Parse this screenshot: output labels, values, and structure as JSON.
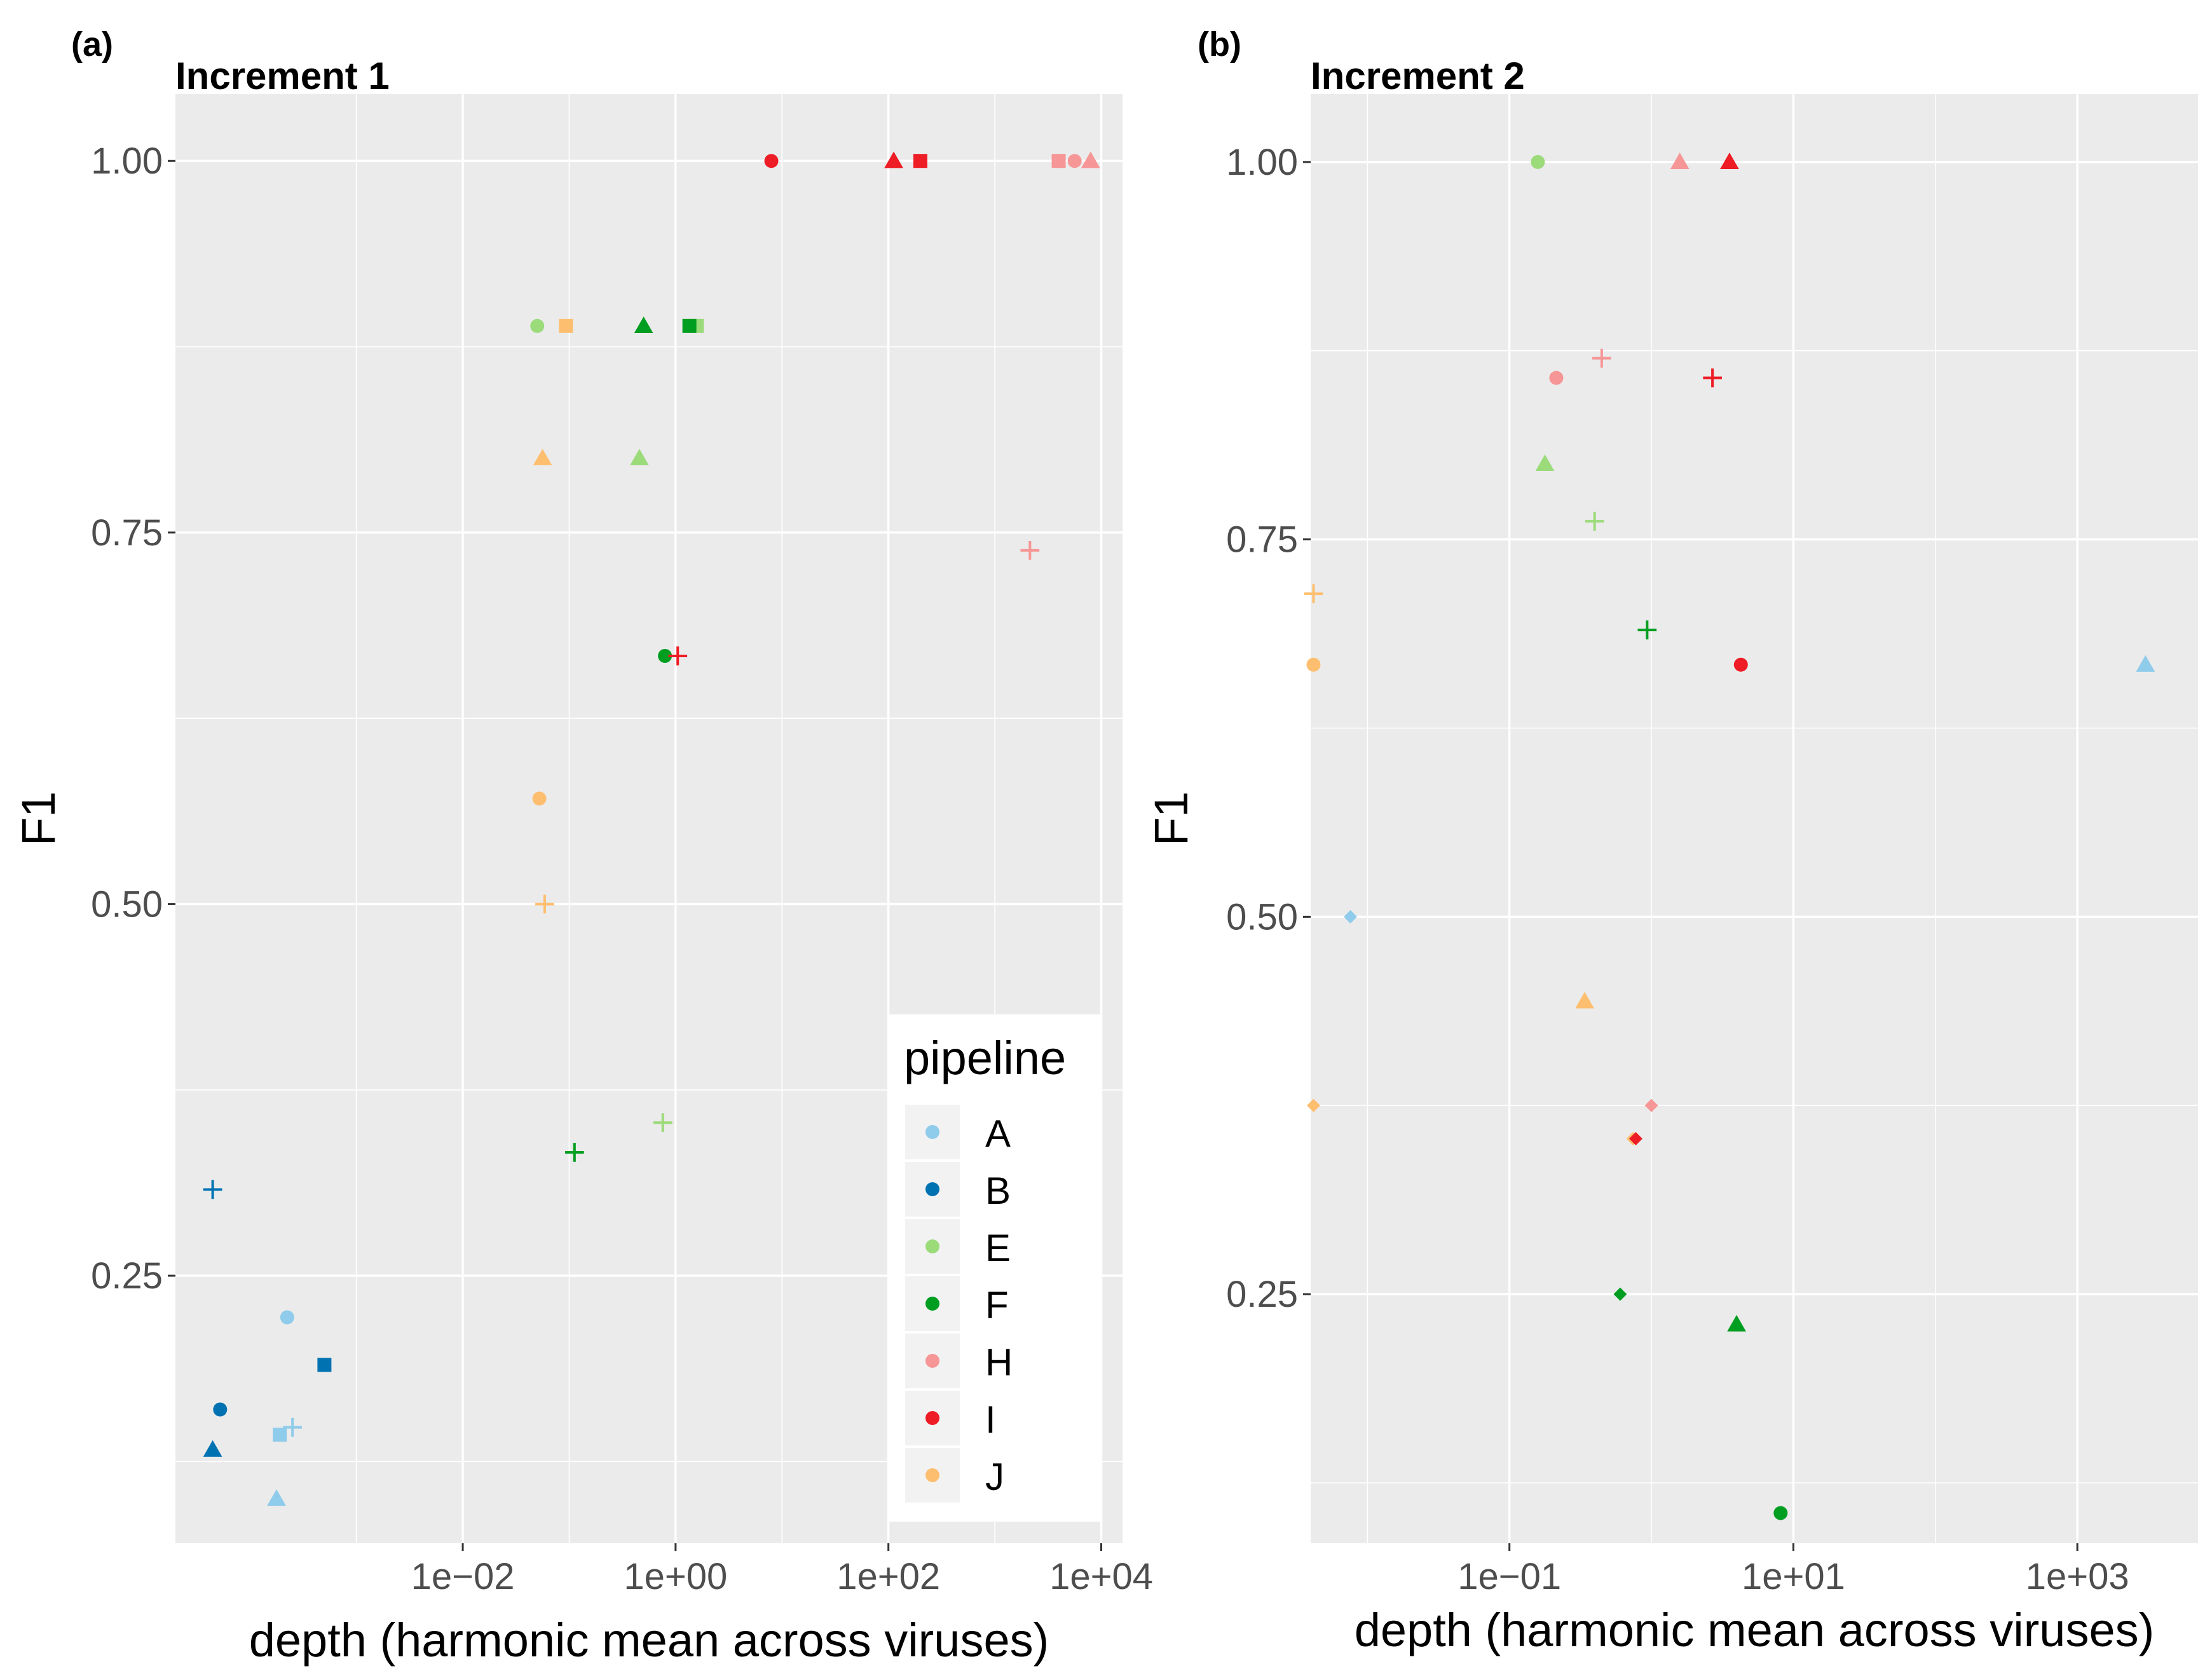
{
  "colors": {
    "panel_bg": "#EBEBEB",
    "grid": "#FFFFFF",
    "axis_text": "#4D4D4D",
    "title_text": "#000000",
    "legend_key_bg": "#F2F2F2"
  },
  "legend": {
    "title": "pipeline",
    "position": "inside bottom-right of panel (a)",
    "entries": [
      {
        "label": "A",
        "color": "#8FCBEA"
      },
      {
        "label": "B",
        "color": "#0072B2"
      },
      {
        "label": "E",
        "color": "#9BDB7A"
      },
      {
        "label": "F",
        "color": "#009E20"
      },
      {
        "label": "H",
        "color": "#F79696"
      },
      {
        "label": "I",
        "color": "#EE1C25"
      },
      {
        "label": "J",
        "color": "#FDBF6F"
      }
    ]
  },
  "chart_data": [
    {
      "type": "scatter",
      "tag": "(a)",
      "title": "Increment 1",
      "xlabel": "depth (harmonic mean across viruses)",
      "ylabel": "F1",
      "x_scale": "log10",
      "xlim_log10": [
        -4.7,
        4.2
      ],
      "ylim": [
        0.07,
        1.045
      ],
      "x_ticks": [
        {
          "log10": -2,
          "label": "1e−02"
        },
        {
          "log10": 0,
          "label": "1e+00"
        },
        {
          "log10": 2,
          "label": "1e+02"
        },
        {
          "log10": 4,
          "label": "1e+04"
        }
      ],
      "y_ticks": [
        {
          "value": 0.25,
          "label": "0.25"
        },
        {
          "value": 0.5,
          "label": "0.50"
        },
        {
          "value": 0.75,
          "label": "0.75"
        },
        {
          "value": 1.0,
          "label": "1.00"
        }
      ],
      "grid": true,
      "points": [
        {
          "pipeline": "I",
          "shape": "circle",
          "log10x": 0.9,
          "y": 1.0
        },
        {
          "pipeline": "I",
          "shape": "triangle",
          "log10x": 2.05,
          "y": 1.0
        },
        {
          "pipeline": "I",
          "shape": "square",
          "log10x": 2.3,
          "y": 1.0
        },
        {
          "pipeline": "H",
          "shape": "square",
          "log10x": 3.6,
          "y": 1.0
        },
        {
          "pipeline": "H",
          "shape": "circle",
          "log10x": 3.75,
          "y": 1.0
        },
        {
          "pipeline": "H",
          "shape": "triangle",
          "log10x": 3.9,
          "y": 1.0
        },
        {
          "pipeline": "E",
          "shape": "circle",
          "log10x": -1.3,
          "y": 0.889
        },
        {
          "pipeline": "J",
          "shape": "square",
          "log10x": -1.03,
          "y": 0.889
        },
        {
          "pipeline": "F",
          "shape": "triangle",
          "log10x": -0.3,
          "y": 0.889
        },
        {
          "pipeline": "E",
          "shape": "square",
          "log10x": 0.2,
          "y": 0.889
        },
        {
          "pipeline": "F",
          "shape": "square",
          "log10x": 0.13,
          "y": 0.889
        },
        {
          "pipeline": "J",
          "shape": "triangle",
          "log10x": -1.25,
          "y": 0.8
        },
        {
          "pipeline": "E",
          "shape": "triangle",
          "log10x": -0.34,
          "y": 0.8
        },
        {
          "pipeline": "H",
          "shape": "plus",
          "log10x": 3.33,
          "y": 0.738
        },
        {
          "pipeline": "F",
          "shape": "circle",
          "log10x": -0.1,
          "y": 0.667
        },
        {
          "pipeline": "I",
          "shape": "plus",
          "log10x": 0.02,
          "y": 0.667
        },
        {
          "pipeline": "J",
          "shape": "circle",
          "log10x": -1.28,
          "y": 0.571
        },
        {
          "pipeline": "J",
          "shape": "plus",
          "log10x": -1.23,
          "y": 0.5
        },
        {
          "pipeline": "E",
          "shape": "plus",
          "log10x": -0.12,
          "y": 0.353
        },
        {
          "pipeline": "F",
          "shape": "plus",
          "log10x": -0.95,
          "y": 0.333
        },
        {
          "pipeline": "B",
          "shape": "plus",
          "log10x": -4.35,
          "y": 0.308
        },
        {
          "pipeline": "A",
          "shape": "circle",
          "log10x": -3.65,
          "y": 0.222
        },
        {
          "pipeline": "B",
          "shape": "square",
          "log10x": -3.3,
          "y": 0.19
        },
        {
          "pipeline": "B",
          "shape": "circle",
          "log10x": -4.28,
          "y": 0.16
        },
        {
          "pipeline": "A",
          "shape": "square",
          "log10x": -3.72,
          "y": 0.143
        },
        {
          "pipeline": "A",
          "shape": "plus",
          "log10x": -3.6,
          "y": 0.148
        },
        {
          "pipeline": "B",
          "shape": "triangle",
          "log10x": -4.35,
          "y": 0.133
        },
        {
          "pipeline": "A",
          "shape": "triangle",
          "log10x": -3.75,
          "y": 0.1
        }
      ]
    },
    {
      "type": "scatter",
      "tag": "(b)",
      "title": "Increment 2",
      "xlabel": "depth (harmonic mean across viruses)",
      "ylabel": "F1",
      "x_scale": "log10",
      "xlim_log10": [
        -2.4,
        3.85
      ],
      "ylim": [
        0.085,
        1.045
      ],
      "x_ticks": [
        {
          "log10": -1,
          "label": "1e−01"
        },
        {
          "log10": 1,
          "label": "1e+01"
        },
        {
          "log10": 3,
          "label": "1e+03"
        }
      ],
      "y_ticks": [
        {
          "value": 0.25,
          "label": "0.25"
        },
        {
          "value": 0.5,
          "label": "0.50"
        },
        {
          "value": 0.75,
          "label": "0.75"
        },
        {
          "value": 1.0,
          "label": "1.00"
        }
      ],
      "grid": true,
      "points": [
        {
          "pipeline": "E",
          "shape": "circle",
          "log10x": -0.8,
          "y": 1.0
        },
        {
          "pipeline": "H",
          "shape": "triangle",
          "log10x": 0.2,
          "y": 1.0
        },
        {
          "pipeline": "I",
          "shape": "triangle",
          "log10x": 0.55,
          "y": 1.0
        },
        {
          "pipeline": "H",
          "shape": "plus",
          "log10x": -0.35,
          "y": 0.87
        },
        {
          "pipeline": "H",
          "shape": "circle",
          "log10x": -0.67,
          "y": 0.857
        },
        {
          "pipeline": "I",
          "shape": "plus",
          "log10x": 0.43,
          "y": 0.857
        },
        {
          "pipeline": "E",
          "shape": "triangle",
          "log10x": -0.75,
          "y": 0.8
        },
        {
          "pipeline": "E",
          "shape": "plus",
          "log10x": -0.4,
          "y": 0.762
        },
        {
          "pipeline": "J",
          "shape": "plus",
          "log10x": -2.38,
          "y": 0.714
        },
        {
          "pipeline": "F",
          "shape": "plus",
          "log10x": -0.03,
          "y": 0.69
        },
        {
          "pipeline": "J",
          "shape": "circle",
          "log10x": -2.38,
          "y": 0.667
        },
        {
          "pipeline": "I",
          "shape": "circle",
          "log10x": 0.63,
          "y": 0.667
        },
        {
          "pipeline": "A",
          "shape": "triangle",
          "log10x": 3.48,
          "y": 0.667
        },
        {
          "pipeline": "A",
          "shape": "diamond",
          "log10x": -2.12,
          "y": 0.5
        },
        {
          "pipeline": "J",
          "shape": "triangle",
          "log10x": -0.47,
          "y": 0.444
        },
        {
          "pipeline": "J",
          "shape": "diamond",
          "log10x": -2.38,
          "y": 0.375
        },
        {
          "pipeline": "H",
          "shape": "diamond",
          "log10x": 0.0,
          "y": 0.375
        },
        {
          "pipeline": "J",
          "shape": "diamond",
          "log10x": -0.13,
          "y": 0.353
        },
        {
          "pipeline": "I",
          "shape": "diamond",
          "log10x": -0.11,
          "y": 0.353
        },
        {
          "pipeline": "F",
          "shape": "diamond",
          "log10x": -0.22,
          "y": 0.25
        },
        {
          "pipeline": "F",
          "shape": "triangle",
          "log10x": 0.6,
          "y": 0.23
        },
        {
          "pipeline": "F",
          "shape": "circle",
          "log10x": 0.91,
          "y": 0.105
        }
      ]
    }
  ]
}
